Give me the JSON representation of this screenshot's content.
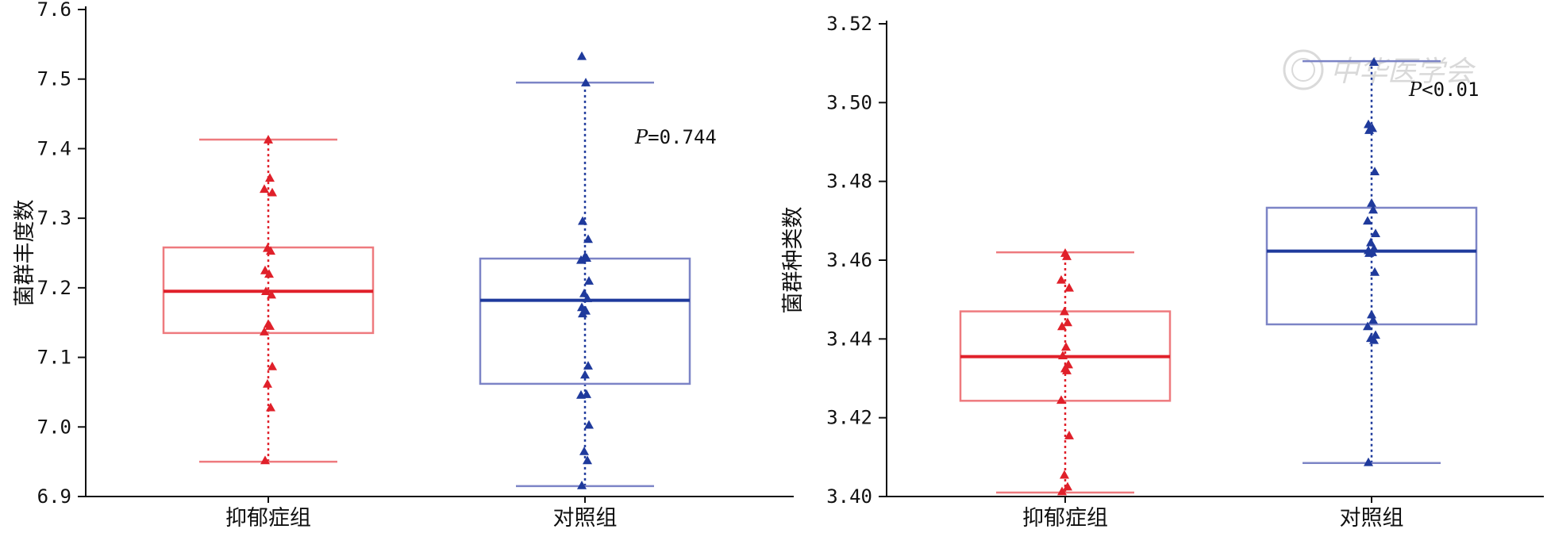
{
  "chart_data": [
    {
      "type": "box",
      "categories": [
        "抑郁症组",
        "对照组"
      ],
      "ylabel": "菌群丰度数",
      "ylim": [
        6.9,
        7.6
      ],
      "yticks": [
        "6.9",
        "7.0",
        "7.1",
        "7.2",
        "7.3",
        "7.4",
        "7.5",
        "7.6"
      ],
      "annotation_prefix": "P",
      "annotation_value": "=0.744",
      "colors": [
        "#e0202a",
        "#1f3a9c"
      ],
      "box_colors": [
        "#ee7a7e",
        "#7c84c6"
      ],
      "series": [
        {
          "name": "抑郁症组",
          "whisker_low": 6.95,
          "q1": 7.135,
          "median": 7.195,
          "q3": 7.258,
          "whisker_high": 7.413,
          "points": [
            6.952,
            7.028,
            7.062,
            7.087,
            7.137,
            7.145,
            7.148,
            7.19,
            7.195,
            7.22,
            7.225,
            7.253,
            7.257,
            7.337,
            7.342,
            7.358,
            7.413
          ]
        },
        {
          "name": "对照组",
          "whisker_low": 6.915,
          "q1": 7.062,
          "median": 7.182,
          "q3": 7.242,
          "whisker_high": 7.495,
          "points": [
            6.916,
            6.952,
            6.965,
            7.003,
            7.046,
            7.047,
            7.075,
            7.088,
            7.163,
            7.167,
            7.172,
            7.185,
            7.192,
            7.21,
            7.24,
            7.243,
            7.245,
            7.27,
            7.296,
            7.495,
            7.533
          ]
        }
      ]
    },
    {
      "type": "box",
      "categories": [
        "抑郁症组",
        "对照组"
      ],
      "ylabel": "菌群种类数",
      "ylim": [
        3.4,
        3.52
      ],
      "yticks": [
        "3.40",
        "3.42",
        "3.44",
        "3.46",
        "3.48",
        "3.50",
        "3.52"
      ],
      "annotation_prefix": "P",
      "annotation_value": "<0.01",
      "colors": [
        "#e0202a",
        "#1f3a9c"
      ],
      "box_colors": [
        "#ee7a7e",
        "#7c84c6"
      ],
      "series": [
        {
          "name": "抑郁症组",
          "whisker_low": 3.401,
          "q1": 3.4243,
          "median": 3.4355,
          "q3": 3.447,
          "whisker_high": 3.462,
          "points": [
            3.4013,
            3.4025,
            3.4055,
            3.4155,
            3.4245,
            3.432,
            3.4325,
            3.4335,
            3.4358,
            3.438,
            3.4432,
            3.4442,
            3.447,
            3.453,
            3.455,
            3.461,
            3.4618
          ]
        },
        {
          "name": "对照组",
          "whisker_low": 3.4085,
          "q1": 3.4437,
          "median": 3.4623,
          "q3": 3.4733,
          "whisker_high": 3.5105,
          "points": [
            3.4087,
            3.4397,
            3.4402,
            3.441,
            3.4432,
            3.4448,
            3.4462,
            3.457,
            3.4618,
            3.462,
            3.4625,
            3.463,
            3.4645,
            3.4668,
            3.47,
            3.4728,
            3.4745,
            3.4825,
            3.493,
            3.4935,
            3.4945,
            3.5103
          ]
        }
      ]
    }
  ]
}
